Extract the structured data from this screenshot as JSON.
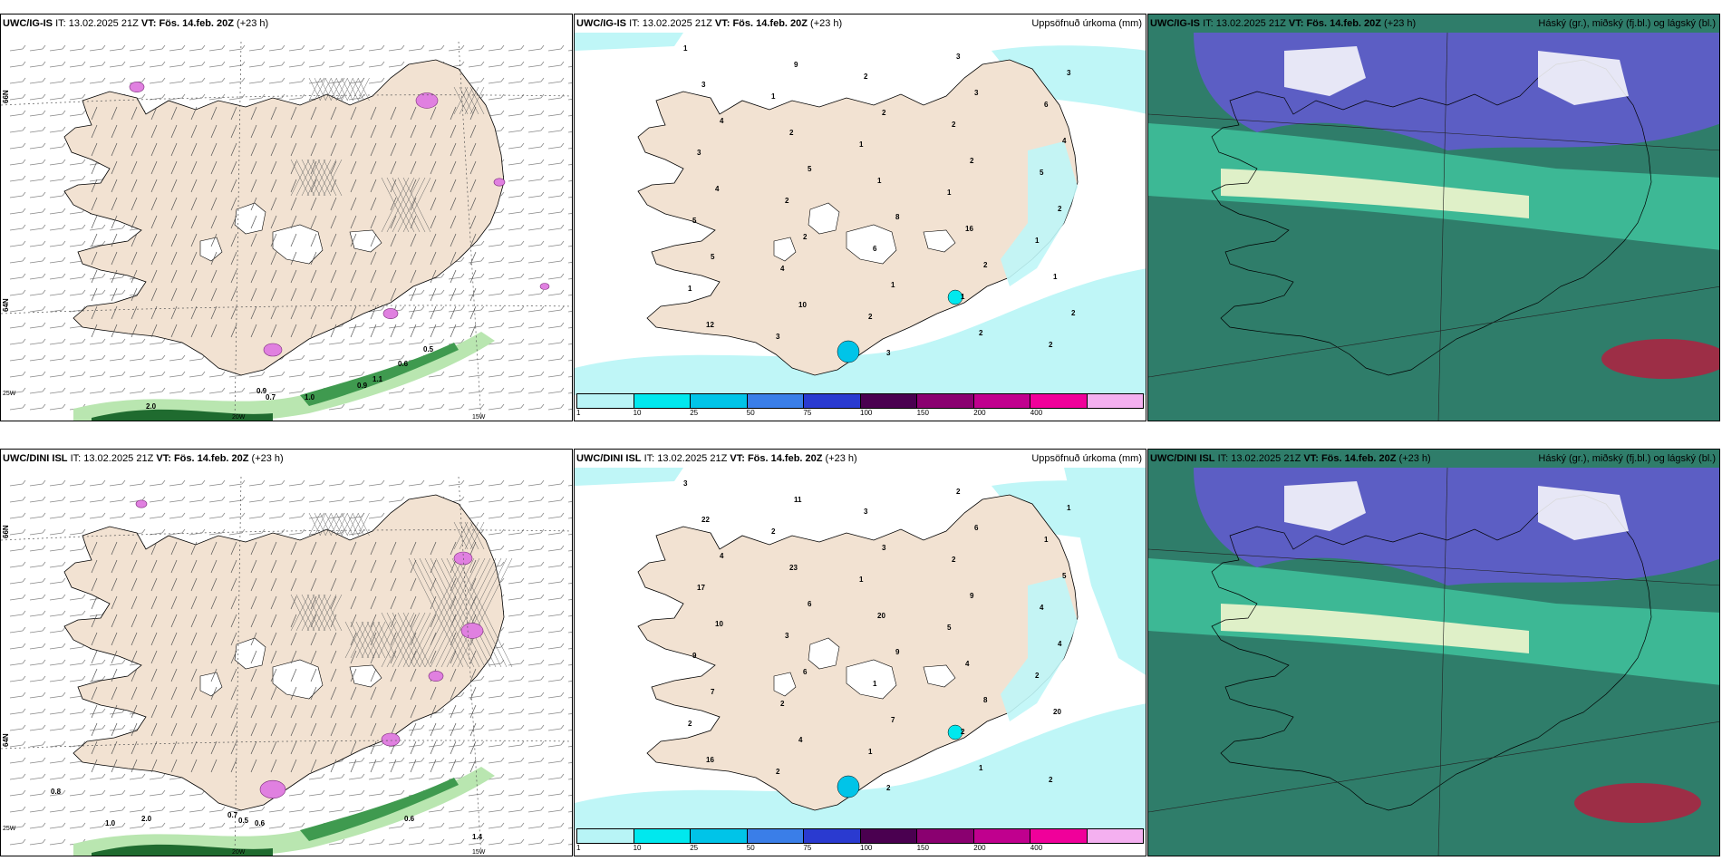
{
  "rows": [
    {
      "model": "UWC/IG-IS",
      "it_label": "IT:",
      "it_value": "13.02.2025 21Z",
      "vt_label": "VT:",
      "vt_value": "Fös. 14.feb. 20Z",
      "lead": "(+23 h)",
      "wind_panel": {
        "lat_labels": [
          "66N",
          "64N"
        ],
        "lon_labels": [
          "25W",
          "20W",
          "15W"
        ],
        "snow_values": [
          "0.5",
          "0.6",
          "1.1",
          "0.9",
          "0.9",
          "0.7",
          "1.0",
          "2.0"
        ]
      },
      "precip_panel": {
        "title": "Uppsöfnuð úrkoma (mm)",
        "values": [
          "1",
          "1",
          "1",
          "1",
          "1",
          "1",
          "3",
          "2",
          "2",
          "5",
          "5",
          "4",
          "2",
          "3",
          "6",
          "3",
          "2",
          "6",
          "1",
          "2",
          "3",
          "2",
          "1",
          "16",
          "1",
          "12",
          "9",
          "2",
          "2",
          "2",
          "5",
          "10",
          "3",
          "3",
          "4",
          "4",
          "2",
          "1",
          "2",
          "3",
          "4",
          "5",
          "8",
          "2",
          "2"
        ]
      },
      "cloud_panel": {
        "title": "Háský (gr.), miðský (fj.bl.) og lágský (bl.)"
      }
    },
    {
      "model": "UWC/DINI ISL",
      "it_label": "IT:",
      "it_value": "13.02.2025 21Z",
      "vt_label": "VT:",
      "vt_value": "Fös. 14.feb. 20Z",
      "lead": "(+23 h)",
      "wind_panel": {
        "lat_labels": [
          "66N",
          "64N"
        ],
        "lon_labels": [
          "25W",
          "20W",
          "15W"
        ],
        "snow_values": [
          "0.8",
          "1.0",
          "2.0",
          "0.7",
          "0.5",
          "0.6",
          "0.6",
          "1.4"
        ]
      },
      "precip_panel": {
        "title": "Uppsöfnuð úrkoma (mm)",
        "values": [
          "3",
          "2",
          "1",
          "5",
          "2",
          "2",
          "2",
          "3",
          "2",
          "4",
          "9",
          "2",
          "1",
          "2",
          "1",
          "17",
          "3",
          "1",
          "2",
          "2",
          "22",
          "23",
          "20",
          "4",
          "20",
          "16",
          "11",
          "3",
          "9",
          "4",
          "7",
          "4",
          "2",
          "6",
          "5",
          "10",
          "6",
          "7",
          "1",
          "1",
          "4",
          "6",
          "9",
          "8"
        ]
      },
      "cloud_panel": {
        "title": "Háský (gr.), miðský (fj.bl.) og lágský (bl.)"
      }
    }
  ],
  "legend": {
    "ticks": [
      "1",
      "10",
      "25",
      "50",
      "75",
      "100",
      "150",
      "200",
      "400"
    ],
    "colors": [
      "#b8f4f6",
      "#00e8ee",
      "#00c4e8",
      "#3a7ee8",
      "#2a3ad0",
      "#4a0050",
      "#8a0070",
      "#c0008e",
      "#f0009a",
      "#f4b0f0"
    ]
  },
  "colors": {
    "land": "#f2e2d2",
    "snow_light": "#b9e6b0",
    "snow_dark": "#1f6b2f",
    "precip_sea": "#bff6f7",
    "ice": "#e080e0",
    "cloud_high": "#5c5ec4",
    "cloud_mid": "#3fbf9a",
    "cloud_low": "#2f7d6a"
  }
}
